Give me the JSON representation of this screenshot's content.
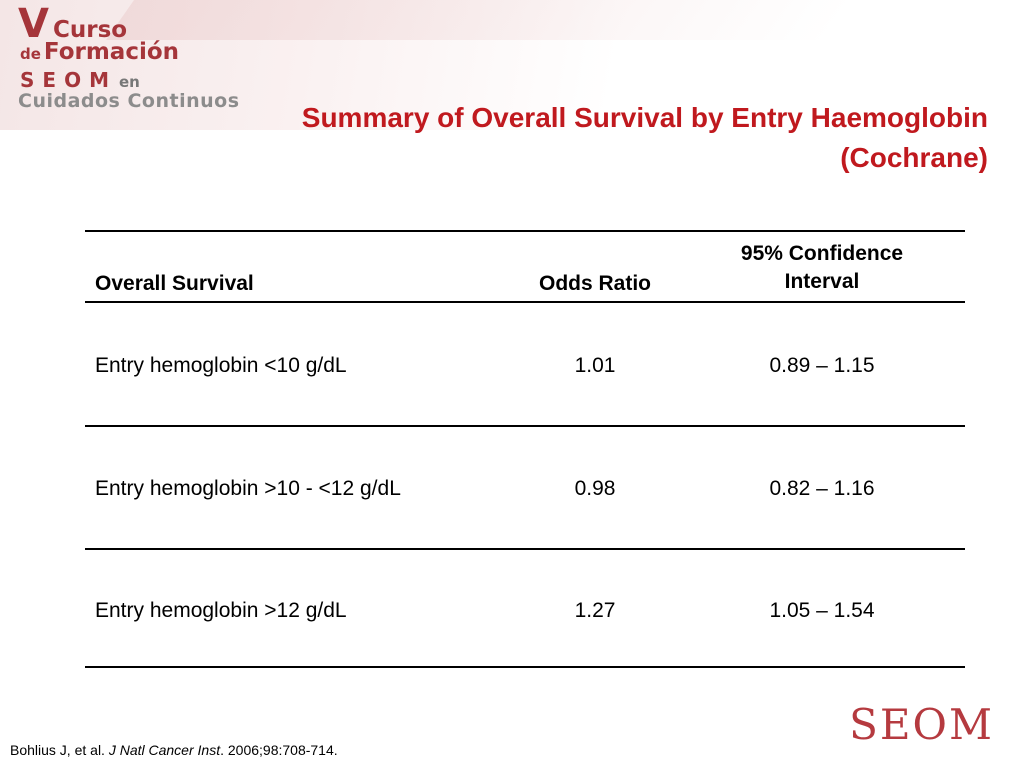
{
  "logo": {
    "line1_big": "V",
    "line1_word": "Curso",
    "line2_small": "de",
    "line2_word": "Formación",
    "line3_seom": "SEOM",
    "line3_en": "en",
    "line4": "Cuidados Continuos"
  },
  "title": {
    "line1": "Summary of Overall Survival by Entry Haemoglobin",
    "line2": "(Cochrane)"
  },
  "table": {
    "headers": {
      "col1": "Overall Survival",
      "col2": "Odds Ratio",
      "col3": "95% Confidence Interval"
    },
    "rows": [
      {
        "label": "Entry hemoglobin <10 g/dL",
        "odds_ratio": "1.01",
        "ci": "0.89 – 1.15"
      },
      {
        "label": "Entry hemoglobin >10 - <12 g/dL",
        "odds_ratio": "0.98",
        "ci": "0.82 – 1.16"
      },
      {
        "label": "Entry hemoglobin >12 g/dL",
        "odds_ratio": "1.27",
        "ci": "1.05 – 1.54"
      }
    ]
  },
  "citation": {
    "authors": "Bohlius J, et al. ",
    "journal": "J Natl Cancer Inst",
    "details": ". 2006;98:708-714."
  },
  "seom_logo": "SEOM",
  "colors": {
    "title": "#c0191e",
    "logo_accent": "#a5353a",
    "logo_gray": "#8c8c8c"
  }
}
